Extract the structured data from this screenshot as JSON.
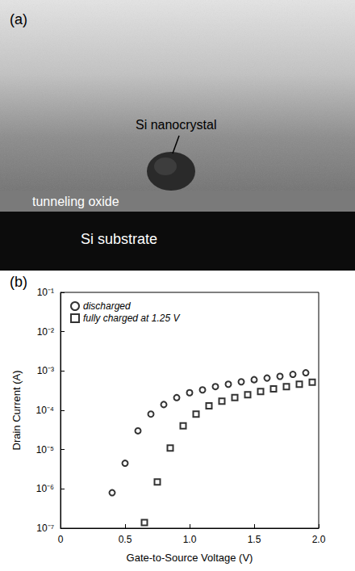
{
  "image_panel": {
    "panel_label": "(a)",
    "labels": [
      "Si nanocrystal",
      "tunneling oxide",
      "Si substrate"
    ]
  },
  "chart_data": {
    "panel_label": "(b)",
    "type": "scatter",
    "xlabel": "Gate-to-Source Voltage (V)",
    "ylabel": "Drain Current (A)",
    "log": "y",
    "xlim": [
      0,
      2
    ],
    "xticks": [
      0,
      0.5,
      {
        "value": 1,
        "label": "1.0"
      },
      1.5,
      {
        "value": 2,
        "label": "2.0"
      }
    ],
    "ylim": [
      1e-07,
      0.1
    ],
    "yticks": [
      {
        "value": 1e-07,
        "label": "10⁻⁷"
      },
      {
        "value": 1e-06,
        "label": "10⁻⁶"
      },
      {
        "value": 1e-05,
        "label": "10⁻⁵"
      },
      {
        "value": 0.0001,
        "label": "10⁻⁴"
      },
      {
        "value": 0.001,
        "label": "10⁻³"
      },
      {
        "value": 0.01,
        "label": "10⁻²"
      },
      {
        "value": 0.1,
        "label": "10⁻¹"
      }
    ],
    "legend": "upper left",
    "series": [
      {
        "name": "discharged",
        "marker": "circle",
        "color": "#000000",
        "x": [
          0.4,
          0.5,
          0.6,
          0.7,
          0.8,
          0.9,
          1.0,
          1.1,
          1.2,
          1.3,
          1.4,
          1.5,
          1.6,
          1.7,
          1.8,
          1.9
        ],
        "values": [
          8e-07,
          4.5e-06,
          3e-05,
          8e-05,
          0.00014,
          0.00021,
          0.00028,
          0.00033,
          0.0004,
          0.00046,
          0.00053,
          0.0006,
          0.00066,
          0.00073,
          0.00082,
          0.0009
        ]
      },
      {
        "name": "fully charged at 1.25 V",
        "marker": "square",
        "color": "#000000",
        "x": [
          0.65,
          0.75,
          0.85,
          0.95,
          1.05,
          1.15,
          1.25,
          1.35,
          1.45,
          1.55,
          1.65,
          1.75,
          1.85,
          1.95
        ],
        "values": [
          1.4e-07,
          1.5e-06,
          1.1e-05,
          4e-05,
          8e-05,
          0.00013,
          0.00017,
          0.00021,
          0.00025,
          0.0003,
          0.00035,
          0.0004,
          0.00046,
          0.00052
        ]
      }
    ]
  }
}
